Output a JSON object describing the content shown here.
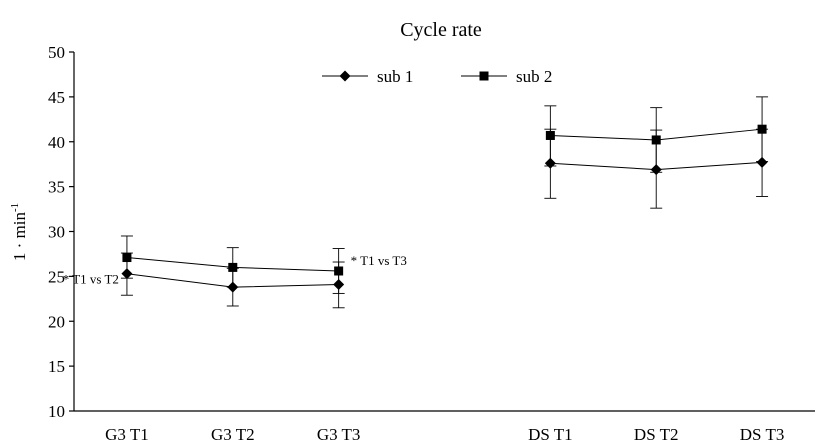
{
  "chart_data": {
    "type": "line",
    "title": "Cycle rate",
    "ylabel": "1 · min",
    "ylabel_superscript": "-1",
    "xlabel": "",
    "ylim": [
      10,
      50
    ],
    "yticks": [
      10,
      15,
      20,
      25,
      30,
      35,
      40,
      45,
      50
    ],
    "categories": [
      "G3 T1",
      "G3 T2",
      "G3 T3",
      "",
      "DS T1",
      "DS T2",
      "DS T3"
    ],
    "grid": false,
    "legend": "top-center",
    "series": [
      {
        "name": "sub 1",
        "marker": "diamond",
        "segments": [
          {
            "indices": [
              0,
              1,
              2
            ],
            "values": [
              25.3,
              23.8,
              24.1
            ],
            "err_low": [
              22.9,
              21.7,
              21.5
            ],
            "err_high": [
              27.6,
              25.9,
              26.6
            ]
          },
          {
            "indices": [
              4,
              5,
              6
            ],
            "values": [
              37.6,
              36.9,
              37.7
            ],
            "err_low": [
              33.7,
              32.6,
              33.9
            ],
            "err_high": [
              41.4,
              41.3,
              41.4
            ]
          }
        ]
      },
      {
        "name": "sub 2",
        "marker": "square",
        "segments": [
          {
            "indices": [
              0,
              1,
              2
            ],
            "values": [
              27.1,
              26.0,
              25.6
            ],
            "err_low": [
              24.8,
              23.8,
              23.1
            ],
            "err_high": [
              29.5,
              28.2,
              28.1
            ]
          },
          {
            "indices": [
              4,
              5,
              6
            ],
            "values": [
              40.7,
              40.2,
              41.4
            ],
            "err_low": [
              37.3,
              36.6,
              37.8
            ],
            "err_high": [
              44.0,
              43.8,
              45.0
            ]
          }
        ]
      }
    ],
    "annotations": [
      {
        "text": "* T1 vs T2",
        "anchor_index": 0,
        "anchor_value": 25.3,
        "side": "left"
      },
      {
        "text": "* T1 vs T3",
        "anchor_index": 2,
        "anchor_value": 25.6,
        "side": "right"
      }
    ]
  }
}
